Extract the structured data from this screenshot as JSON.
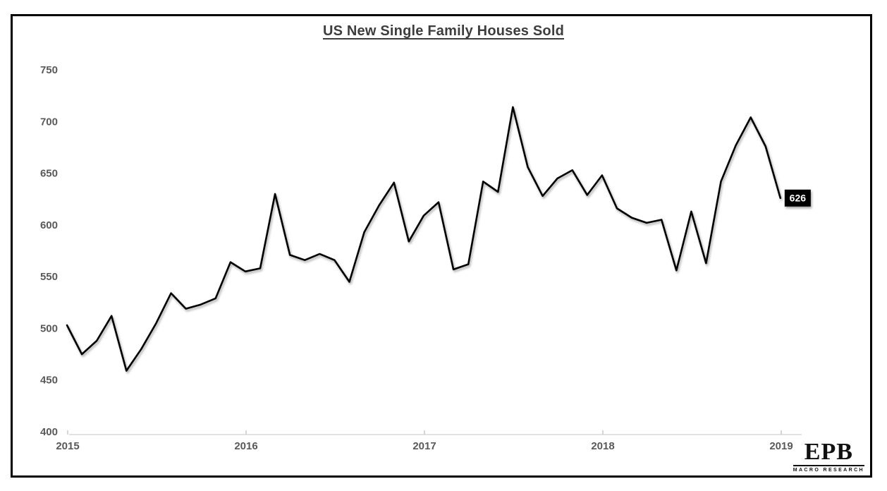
{
  "title": "US New Single Family Houses Sold",
  "branding": {
    "logo_text": "EPB",
    "logo_subtext": "MACRO RESEARCH"
  },
  "colors": {
    "line": "#000000",
    "axis_line": "#d9d9d9",
    "tick_mark": "#c9c9c9",
    "tick_label": "#595959",
    "title_text": "#3d3d3d",
    "end_label_bg": "#000000",
    "end_label_text": "#ffffff",
    "frame_border": "#000000",
    "background": "#ffffff"
  },
  "chart_data": {
    "type": "line",
    "title": "US New Single Family Houses Sold",
    "xlabel": "",
    "ylabel": "",
    "ylim": [
      400,
      750
    ],
    "y_ticks": [
      750,
      700,
      650,
      600,
      550,
      500,
      450,
      400
    ],
    "x_tick_labels": [
      "2015",
      "2016",
      "2017",
      "2018",
      "2019"
    ],
    "grid": false,
    "legend": "none",
    "frequency": "monthly",
    "x": [
      "2015-01",
      "2015-02",
      "2015-03",
      "2015-04",
      "2015-05",
      "2015-06",
      "2015-07",
      "2015-08",
      "2015-09",
      "2015-10",
      "2015-11",
      "2015-12",
      "2016-01",
      "2016-02",
      "2016-03",
      "2016-04",
      "2016-05",
      "2016-06",
      "2016-07",
      "2016-08",
      "2016-09",
      "2016-10",
      "2016-11",
      "2016-12",
      "2017-01",
      "2017-02",
      "2017-03",
      "2017-04",
      "2017-05",
      "2017-06",
      "2017-07",
      "2017-08",
      "2017-09",
      "2017-10",
      "2017-11",
      "2017-12",
      "2018-01",
      "2018-02",
      "2018-03",
      "2018-04",
      "2018-05",
      "2018-06",
      "2018-07",
      "2018-08",
      "2018-09",
      "2018-10",
      "2018-11",
      "2018-12",
      "2019-01"
    ],
    "series": [
      {
        "name": "US New Single Family Houses Sold",
        "values": [
          503,
          475,
          488,
          512,
          459,
          480,
          505,
          534,
          519,
          523,
          529,
          564,
          555,
          558,
          630,
          571,
          566,
          572,
          566,
          545,
          593,
          619,
          641,
          584,
          609,
          622,
          557,
          562,
          642,
          632,
          714,
          656,
          628,
          645,
          653,
          629,
          648,
          616,
          607,
          602,
          605,
          556,
          613,
          563,
          642,
          677,
          704,
          676,
          626
        ]
      }
    ],
    "end_label": "626"
  }
}
